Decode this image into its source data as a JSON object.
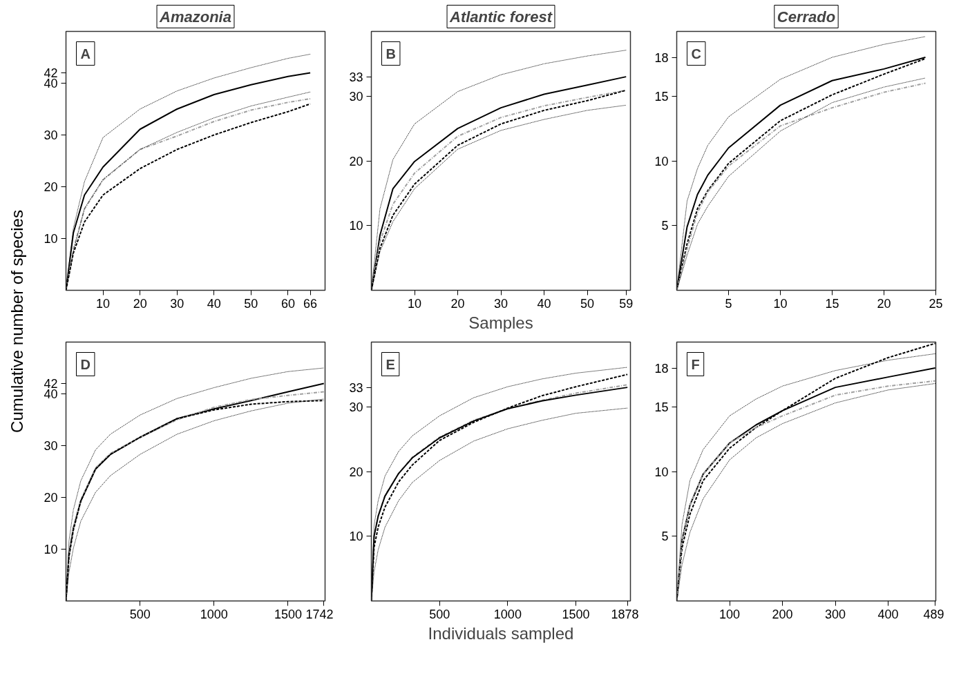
{
  "chart_data": [
    {
      "type": "line",
      "title": "Amazonia",
      "ylabel": "Cumulative number of species",
      "annotations": [
        "A"
      ],
      "xlim": [
        0,
        70
      ],
      "ylim": [
        0,
        50
      ],
      "xticks": [
        10,
        20,
        30,
        40,
        50,
        60,
        66
      ],
      "yticks": [
        10,
        20,
        30,
        40,
        42
      ],
      "x": [
        0,
        2,
        5,
        10,
        20,
        30,
        40,
        50,
        60,
        66
      ],
      "series": [
        {
          "color": "#000000",
          "line_style": "dotted",
          "values": [
            0,
            12,
            21,
            29.5,
            35,
            38.5,
            41,
            43,
            44.8,
            45.6
          ]
        },
        {
          "color": "#000000",
          "line_style": "solid",
          "values": [
            0,
            11.1,
            18.4,
            23.8,
            31.1,
            35.0,
            37.8,
            39.7,
            41.3,
            42
          ]
        },
        {
          "color": "#a0a0a0",
          "line_style": "dashdot",
          "values": [
            0,
            8,
            15.7,
            21.3,
            27.2,
            29.8,
            32.6,
            34.8,
            36.3,
            37.0
          ]
        },
        {
          "color": "#000000",
          "line_style": "dotted",
          "values": [
            0,
            7.5,
            15.8,
            21.4,
            27.2,
            30.5,
            33.3,
            35.6,
            37.3,
            38.3
          ]
        },
        {
          "color": "#000000",
          "line_style": "dashed",
          "values": [
            0,
            7.2,
            13.2,
            18.4,
            23.5,
            27.2,
            30.0,
            32.4,
            34.5,
            36.0
          ]
        }
      ]
    },
    {
      "type": "line",
      "title": "Atlantic forest",
      "xlabel": "Samples",
      "annotations": [
        "B"
      ],
      "xlim": [
        0,
        60
      ],
      "ylim": [
        0,
        40
      ],
      "xticks": [
        10,
        20,
        30,
        40,
        50,
        59
      ],
      "yticks": [
        10,
        20,
        30,
        33
      ],
      "x": [
        0,
        2,
        5,
        10,
        20,
        30,
        40,
        50,
        59
      ],
      "series": [
        {
          "color": "#000000",
          "line_style": "dotted",
          "values": [
            0,
            12.6,
            20.2,
            25.7,
            30.7,
            33.3,
            35.0,
            36.2,
            37.1
          ]
        },
        {
          "color": "#000000",
          "line_style": "solid",
          "values": [
            0,
            8.5,
            15.7,
            19.9,
            25.0,
            28.2,
            30.3,
            31.7,
            33
          ]
        },
        {
          "color": "#a0a0a0",
          "line_style": "dashdot",
          "values": [
            0,
            7.5,
            13.3,
            18.1,
            23.8,
            26.7,
            28.5,
            29.8,
            30.9
          ]
        },
        {
          "color": "#000000",
          "line_style": "dashed",
          "values": [
            0,
            6.5,
            11.6,
            16.4,
            22.4,
            25.7,
            27.8,
            29.3,
            30.9
          ]
        },
        {
          "color": "#000000",
          "line_style": "dotted",
          "values": [
            0,
            6,
            10.6,
            15.7,
            21.8,
            24.7,
            26.4,
            27.8,
            28.6
          ]
        }
      ]
    },
    {
      "type": "line",
      "title": "Cerrado",
      "annotations": [
        "C"
      ],
      "xlim": [
        0,
        25
      ],
      "ylim": [
        0,
        20
      ],
      "xticks": [
        5,
        10,
        15,
        20,
        25
      ],
      "yticks": [
        5,
        10,
        15,
        18
      ],
      "x": [
        0,
        1,
        2,
        3,
        5,
        10,
        15,
        20,
        24
      ],
      "series": [
        {
          "color": "#000000",
          "line_style": "dotted",
          "values": [
            0,
            6.9,
            9.4,
            11.2,
            13.4,
            16.3,
            18.0,
            19.0,
            19.6
          ]
        },
        {
          "color": "#000000",
          "line_style": "solid",
          "values": [
            0,
            4.9,
            7.4,
            8.9,
            11.0,
            14.3,
            16.2,
            17.1,
            18
          ]
        },
        {
          "color": "#000000",
          "line_style": "dashed",
          "values": [
            0,
            3.6,
            6.3,
            7.7,
            9.8,
            13.1,
            15.1,
            16.7,
            17.9
          ]
        },
        {
          "color": "#a0a0a0",
          "line_style": "dashdot",
          "values": [
            0,
            3.2,
            6.0,
            7.6,
            9.6,
            12.7,
            14.1,
            15.3,
            16.0
          ]
        },
        {
          "color": "#000000",
          "line_style": "dotted",
          "values": [
            0,
            2.7,
            5.1,
            6.5,
            8.8,
            12.3,
            14.5,
            15.7,
            16.4
          ]
        }
      ]
    },
    {
      "type": "line",
      "annotations": [
        "D"
      ],
      "xlim": [
        0,
        1750
      ],
      "ylim": [
        0,
        50
      ],
      "xticks": [
        500,
        1000,
        1500,
        1742
      ],
      "yticks": [
        10,
        20,
        30,
        40,
        42
      ],
      "x": [
        0,
        20,
        50,
        100,
        200,
        300,
        500,
        750,
        1000,
        1250,
        1500,
        1742
      ],
      "series": [
        {
          "color": "#000000",
          "line_style": "dotted",
          "values": [
            0,
            11.5,
            17.6,
            23.2,
            29.2,
            32.2,
            35.9,
            39.1,
            41.2,
            43.0,
            44.3,
            45.0
          ]
        },
        {
          "color": "#000000",
          "line_style": "solid",
          "values": [
            0,
            9.0,
            14.1,
            19.3,
            25.5,
            28.3,
            31.6,
            35.2,
            37.1,
            38.7,
            40.4,
            42.0
          ]
        },
        {
          "color": "#a0a0a0",
          "line_style": "dashdot",
          "values": [
            0,
            8.7,
            14.1,
            19.5,
            25.7,
            28.5,
            31.6,
            35.0,
            37.4,
            38.9,
            39.7,
            40.4
          ]
        },
        {
          "color": "#000000",
          "line_style": "dashed",
          "values": [
            0,
            8.5,
            13.7,
            19.3,
            25.5,
            28.3,
            31.6,
            35.2,
            36.9,
            38.0,
            38.5,
            38.7
          ]
        },
        {
          "color": "#000000",
          "line_style": "dotted",
          "values": [
            0,
            5.5,
            10.2,
            15.4,
            21.0,
            24.2,
            28.3,
            32.2,
            34.8,
            36.7,
            38.2,
            39.0
          ]
        }
      ]
    },
    {
      "type": "line",
      "xlabel": "Individuals sampled",
      "annotations": [
        "E"
      ],
      "xlim": [
        0,
        1900
      ],
      "ylim": [
        0,
        40
      ],
      "xticks": [
        500,
        1000,
        1500,
        1878
      ],
      "yticks": [
        10,
        20,
        30,
        33
      ],
      "x": [
        0,
        20,
        50,
        100,
        200,
        300,
        500,
        750,
        1000,
        1250,
        1500,
        1878
      ],
      "series": [
        {
          "color": "#000000",
          "line_style": "dotted",
          "values": [
            0,
            11.7,
            15.5,
            19.3,
            23.1,
            25.5,
            28.6,
            31.4,
            33.1,
            34.3,
            35.2,
            36.1
          ]
        },
        {
          "color": "#000000",
          "line_style": "dashed",
          "values": [
            0,
            8.3,
            11.4,
            14.5,
            18.4,
            21.0,
            24.8,
            27.6,
            29.8,
            31.7,
            33.1,
            35.0
          ]
        },
        {
          "color": "#a0a0a0",
          "line_style": "dashdot",
          "values": [
            0,
            10.0,
            13.1,
            16.3,
            19.7,
            22.2,
            25.3,
            27.9,
            29.7,
            31.0,
            32.1,
            33.4
          ]
        },
        {
          "color": "#000000",
          "line_style": "solid",
          "values": [
            0,
            10.0,
            13.1,
            16.2,
            19.7,
            22.1,
            25.2,
            27.8,
            29.7,
            30.9,
            31.8,
            33.0
          ]
        },
        {
          "color": "#000000",
          "line_style": "dotted",
          "values": [
            0,
            4.5,
            7.9,
            11.4,
            15.5,
            18.3,
            21.7,
            24.7,
            26.6,
            27.9,
            29.0,
            29.8
          ]
        }
      ]
    },
    {
      "type": "line",
      "annotations": [
        "F"
      ],
      "xlim": [
        0,
        490
      ],
      "ylim": [
        0,
        20
      ],
      "xticks": [
        100,
        200,
        300,
        400,
        489
      ],
      "yticks": [
        5,
        10,
        15,
        18
      ],
      "x": [
        0,
        10,
        25,
        50,
        100,
        150,
        200,
        300,
        400,
        489
      ],
      "series": [
        {
          "color": "#000000",
          "line_style": "dashed",
          "values": [
            0,
            4.1,
            6.7,
            9.3,
            11.8,
            13.4,
            14.7,
            17.2,
            18.8,
            19.9
          ]
        },
        {
          "color": "#000000",
          "line_style": "dotted",
          "values": [
            0,
            5.9,
            9.3,
            11.7,
            14.3,
            15.6,
            16.6,
            17.8,
            18.6,
            19.1
          ]
        },
        {
          "color": "#000000",
          "line_style": "solid",
          "values": [
            0,
            4.7,
            7.4,
            9.8,
            12.2,
            13.6,
            14.7,
            16.5,
            17.3,
            18.0
          ]
        },
        {
          "color": "#a0a0a0",
          "line_style": "dashdot",
          "values": [
            0,
            4.7,
            7.4,
            9.8,
            12.2,
            13.4,
            14.3,
            15.9,
            16.6,
            17.0
          ]
        },
        {
          "color": "#000000",
          "line_style": "dotted",
          "values": [
            0,
            2.8,
            5.3,
            7.9,
            10.9,
            12.6,
            13.7,
            15.3,
            16.3,
            16.8
          ]
        }
      ]
    }
  ]
}
